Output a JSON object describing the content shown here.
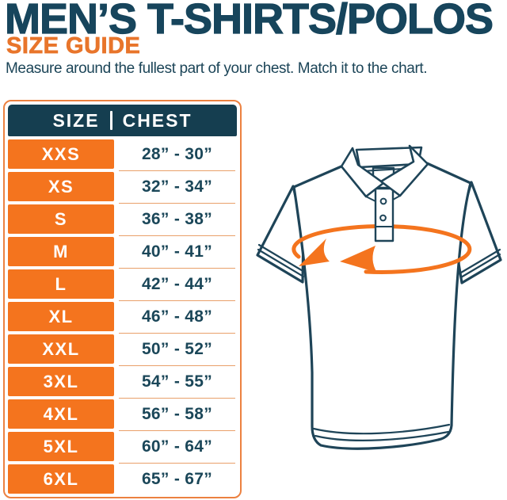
{
  "header": {
    "title": "MEN’S T-SHIRTS/POLOS",
    "subtitle": "SIZE GUIDE",
    "description": "Measure around the fullest part of your chest. Match it to the chart."
  },
  "size_table": {
    "column_headers": {
      "size": "SIZE",
      "chest": "CHEST"
    },
    "rows": [
      {
        "size": "XXS",
        "chest": "28” - 30”"
      },
      {
        "size": "XS",
        "chest": "32” - 34”"
      },
      {
        "size": "S",
        "chest": "36” - 38”"
      },
      {
        "size": "M",
        "chest": "40” - 41”"
      },
      {
        "size": "L",
        "chest": "42” - 44”"
      },
      {
        "size": "XL",
        "chest": "46” - 48”"
      },
      {
        "size": "XXL",
        "chest": "50” - 52”"
      },
      {
        "size": "3XL",
        "chest": "54” - 55”"
      },
      {
        "size": "4XL",
        "chest": "56” - 58”"
      },
      {
        "size": "5XL",
        "chest": "60” - 64”"
      },
      {
        "size": "6XL",
        "chest": "65” - 67”"
      }
    ]
  },
  "illustration": {
    "name": "polo-shirt-with-chest-measurement-arrow",
    "outline_color": "#1E4458",
    "arrow_color": "#F4741E"
  },
  "colors": {
    "accent_orange": "#F4741E",
    "dark_navy": "#17455C",
    "subtitle_orange": "#E8752B",
    "table_header_bg": "#153E50",
    "table_border": "#EC8140",
    "row_separator": "#E9A06A",
    "background": "#FFFFFF"
  }
}
